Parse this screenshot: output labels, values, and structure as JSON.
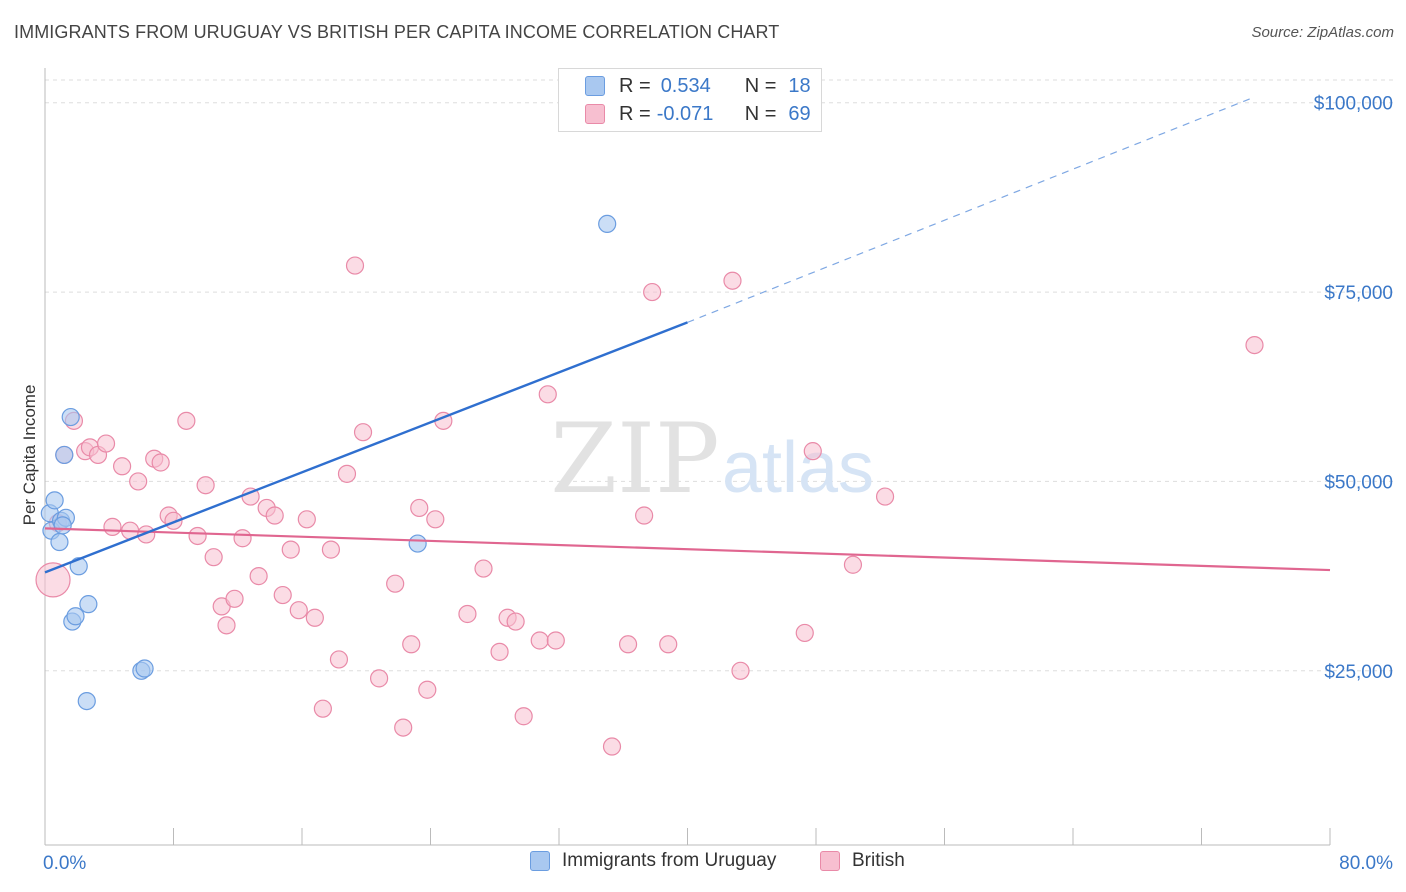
{
  "header": {
    "title": "IMMIGRANTS FROM URUGUAY VS BRITISH PER CAPITA INCOME CORRELATION CHART",
    "source": "Source: ZipAtlas.com"
  },
  "watermark": {
    "zip": "ZIP",
    "atlas": "atlas"
  },
  "legend": {
    "rows": [
      {
        "r_label": "R =",
        "r_value": "0.534",
        "n_label": "N =",
        "n_value": "18"
      },
      {
        "r_label": "R =",
        "r_value": "-0.071",
        "n_label": "N =",
        "n_value": "69"
      }
    ]
  },
  "bottom_legend": [
    "Immigrants from Uruguay",
    "British"
  ],
  "colors": {
    "uruguay_fill": "#a9c8f0",
    "uruguay_stroke": "#6b9de0",
    "uruguay_line": "#2f6fcf",
    "british_fill": "#f7bfd0",
    "british_stroke": "#e98aa8",
    "british_line": "#e06690",
    "tick_text": "#3b78c8",
    "grid": "#dddddd"
  },
  "chart_data": {
    "type": "scatter",
    "title": "IMMIGRANTS FROM URUGUAY VS BRITISH PER CAPITA INCOME CORRELATION CHART",
    "xlabel": "",
    "ylabel": "Per Capita Income",
    "xlim": [
      0,
      80
    ],
    "ylim": [
      2000,
      103000
    ],
    "x_tick_labels": [
      "0.0%",
      "80.0%"
    ],
    "y_ticks": [
      25000,
      50000,
      75000,
      100000
    ],
    "y_tick_labels": [
      "$25,000",
      "$50,000",
      "$75,000",
      "$100,000"
    ],
    "grid": true,
    "legend_position": "top-center",
    "series": [
      {
        "name": "Immigrants from Uruguay",
        "r": 0.534,
        "n": 18,
        "points": [
          [
            0.3,
            45800
          ],
          [
            0.6,
            47500
          ],
          [
            0.4,
            43500
          ],
          [
            0.9,
            42000
          ],
          [
            1.0,
            44800
          ],
          [
            1.2,
            53500
          ],
          [
            1.3,
            45200
          ],
          [
            1.6,
            58500
          ],
          [
            1.7,
            31500
          ],
          [
            1.9,
            32200
          ],
          [
            2.1,
            38800
          ],
          [
            2.6,
            21000
          ],
          [
            2.7,
            33800
          ],
          [
            6.0,
            25000
          ],
          [
            6.2,
            25300
          ],
          [
            23.2,
            41800
          ],
          [
            35.0,
            84000
          ],
          [
            1.1,
            44200
          ]
        ],
        "trend_solid": [
          [
            0,
            38000
          ],
          [
            40,
            71000
          ]
        ],
        "trend_dashed": [
          [
            40,
            71000
          ],
          [
            75,
            100500
          ]
        ]
      },
      {
        "name": "British",
        "r": -0.071,
        "n": 69,
        "points": [
          [
            0.5,
            37000
          ],
          [
            0.8,
            44500
          ],
          [
            1.2,
            53500
          ],
          [
            1.8,
            58000
          ],
          [
            2.5,
            54000
          ],
          [
            2.8,
            54500
          ],
          [
            3.3,
            53500
          ],
          [
            3.8,
            55000
          ],
          [
            4.2,
            44000
          ],
          [
            4.8,
            52000
          ],
          [
            5.3,
            43500
          ],
          [
            5.8,
            50000
          ],
          [
            6.3,
            43000
          ],
          [
            6.8,
            53000
          ],
          [
            7.2,
            52500
          ],
          [
            7.7,
            45500
          ],
          [
            8.0,
            44800
          ],
          [
            8.8,
            58000
          ],
          [
            9.5,
            42800
          ],
          [
            10.0,
            49500
          ],
          [
            10.5,
            40000
          ],
          [
            11.0,
            33500
          ],
          [
            11.3,
            31000
          ],
          [
            11.8,
            34500
          ],
          [
            12.3,
            42500
          ],
          [
            12.8,
            48000
          ],
          [
            13.3,
            37500
          ],
          [
            13.8,
            46500
          ],
          [
            14.3,
            45500
          ],
          [
            14.8,
            35000
          ],
          [
            15.3,
            41000
          ],
          [
            15.8,
            33000
          ],
          [
            16.3,
            45000
          ],
          [
            16.8,
            32000
          ],
          [
            17.3,
            20000
          ],
          [
            17.8,
            41000
          ],
          [
            18.3,
            26500
          ],
          [
            18.8,
            51000
          ],
          [
            19.3,
            78500
          ],
          [
            19.8,
            56500
          ],
          [
            20.8,
            24000
          ],
          [
            21.8,
            36500
          ],
          [
            22.3,
            17500
          ],
          [
            22.8,
            28500
          ],
          [
            23.3,
            46500
          ],
          [
            23.8,
            22500
          ],
          [
            24.3,
            45000
          ],
          [
            24.8,
            58000
          ],
          [
            26.3,
            32500
          ],
          [
            27.3,
            38500
          ],
          [
            28.3,
            27500
          ],
          [
            28.8,
            32000
          ],
          [
            29.3,
            31500
          ],
          [
            29.8,
            19000
          ],
          [
            30.8,
            29000
          ],
          [
            31.3,
            61500
          ],
          [
            31.8,
            29000
          ],
          [
            35.3,
            15000
          ],
          [
            36.3,
            28500
          ],
          [
            37.3,
            45500
          ],
          [
            37.8,
            75000
          ],
          [
            38.8,
            28500
          ],
          [
            42.8,
            76500
          ],
          [
            43.3,
            25000
          ],
          [
            47.3,
            30000
          ],
          [
            47.8,
            54000
          ],
          [
            50.3,
            39000
          ],
          [
            52.3,
            48000
          ],
          [
            75.3,
            68000
          ]
        ],
        "trend_solid": [
          [
            0,
            43800
          ],
          [
            80,
            38300
          ]
        ]
      }
    ]
  }
}
